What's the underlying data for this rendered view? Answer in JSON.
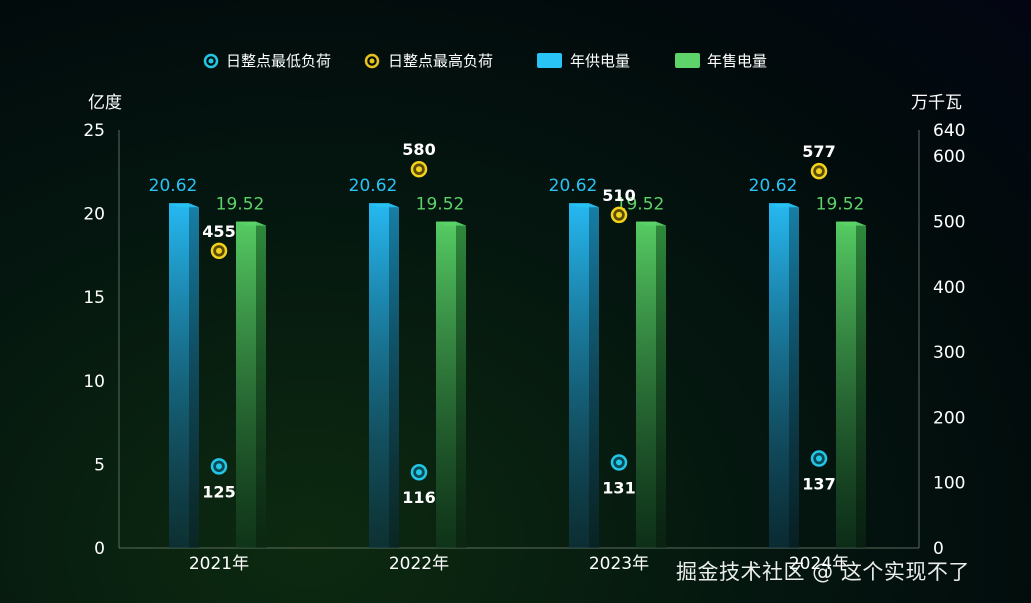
{
  "chart_data": {
    "type": "bar",
    "categories": [
      "2021年",
      "2022年",
      "2023年",
      "2024年"
    ],
    "legend": [
      "日整点最低负荷",
      "日整点最高负荷",
      "年供电量",
      "年售电量"
    ],
    "left_axis": {
      "label": "亿度",
      "min": 0,
      "max": 25,
      "ticks": [
        0,
        5,
        10,
        15,
        20,
        25
      ]
    },
    "right_axis": {
      "label": "万千瓦",
      "min": 0,
      "max": 640,
      "ticks": [
        0,
        100,
        200,
        300,
        400,
        500,
        600,
        640
      ]
    },
    "series": [
      {
        "name": "年供电量",
        "type": "bar",
        "axis": "left",
        "values": [
          20.62,
          20.62,
          20.62,
          20.62
        ]
      },
      {
        "name": "年售电量",
        "type": "bar",
        "axis": "left",
        "values": [
          19.52,
          19.52,
          19.52,
          19.52
        ]
      },
      {
        "name": "日整点最低负荷",
        "type": "scatter",
        "axis": "right",
        "values": [
          125,
          116,
          131,
          137
        ]
      },
      {
        "name": "日整点最高负荷",
        "type": "scatter",
        "axis": "right",
        "values": [
          455,
          580,
          510,
          577
        ]
      }
    ],
    "colors": {
      "supply": "#29c3f5",
      "sales": "#5dd36a",
      "low": "#23c6e6",
      "high": "#f2d21b",
      "axis_text": "#ffffff"
    }
  },
  "watermark": "掘金技术社区 @ 这个实现不了"
}
